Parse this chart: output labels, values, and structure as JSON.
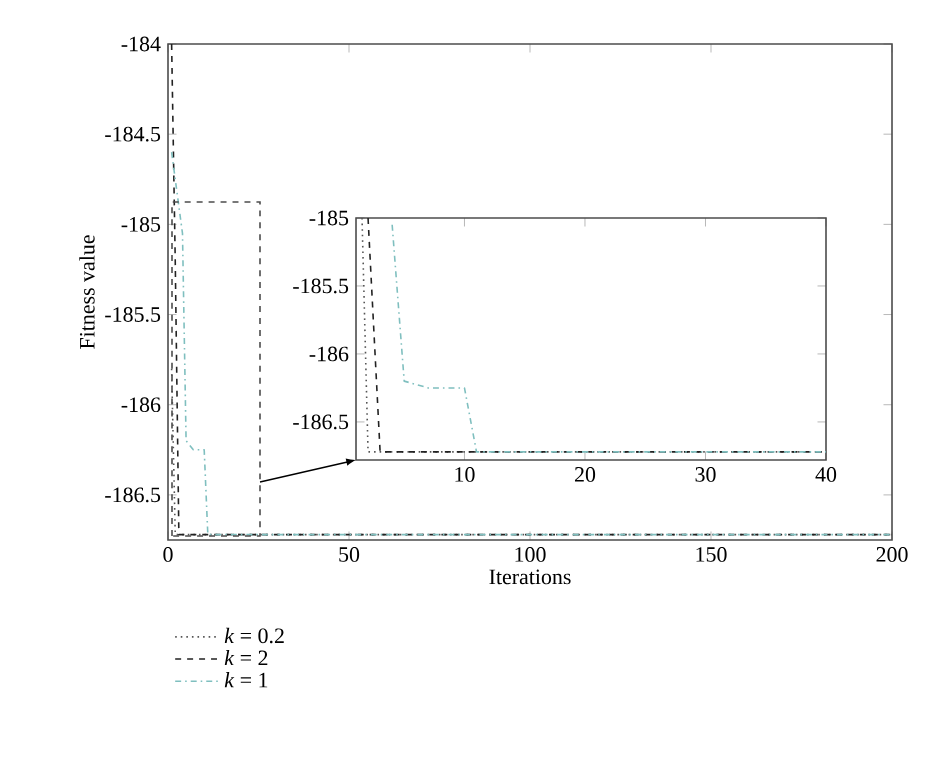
{
  "chart_data": [
    {
      "type": "line",
      "xlabel": "Iterations",
      "ylabel": "Fitness value",
      "xlim": [
        0,
        200
      ],
      "ylim": [
        -186.75,
        -184
      ],
      "xticks": [
        0,
        50,
        100,
        150,
        200
      ],
      "yticks": [
        -186.5,
        -186,
        -185.5,
        -185,
        -184.5,
        -184
      ],
      "legend": "bottom left",
      "grid": false,
      "series": [
        {
          "name": "*k* = 0.2",
          "color": "#555555",
          "line_style": "dotted",
          "x": [
            1,
            2,
            200
          ],
          "values": [
            -185.8,
            -186.72,
            -186.72
          ]
        },
        {
          "name": "*k* = 2",
          "color": "#222222",
          "line_style": "dashed",
          "x": [
            1,
            2,
            3,
            200
          ],
          "values": [
            -184,
            -185.2,
            -186.72,
            -186.72
          ]
        },
        {
          "name": "*k* = 1",
          "color": "#7fbfbf",
          "line_style": "dashdot",
          "x": [
            1,
            4,
            5,
            7,
            10,
            11,
            200
          ],
          "values": [
            -184.6,
            -185.05,
            -186.2,
            -186.25,
            -186.25,
            -186.72,
            -186.72
          ]
        }
      ]
    },
    {
      "type": "line",
      "xlim": [
        1,
        40
      ],
      "ylim": [
        -186.78,
        -185
      ],
      "xticks": [
        10,
        20,
        30,
        40
      ],
      "yticks": [
        -186.5,
        -186,
        -185.5,
        -185
      ],
      "grid": false,
      "series": [
        {
          "color": "#555555",
          "line_style": "dotted",
          "x": [
            1.5,
            2,
            40
          ],
          "values": [
            -185,
            -186.72,
            -186.72
          ]
        },
        {
          "color": "#222222",
          "line_style": "dashed",
          "x": [
            2,
            3,
            40
          ],
          "values": [
            -185,
            -186.72,
            -186.72
          ]
        },
        {
          "color": "#7fbfbf",
          "line_style": "dashdot",
          "x": [
            4,
            5,
            7,
            10,
            11,
            40
          ],
          "values": [
            -185.05,
            -186.2,
            -186.25,
            -186.25,
            -186.72,
            -186.72
          ]
        }
      ]
    }
  ]
}
